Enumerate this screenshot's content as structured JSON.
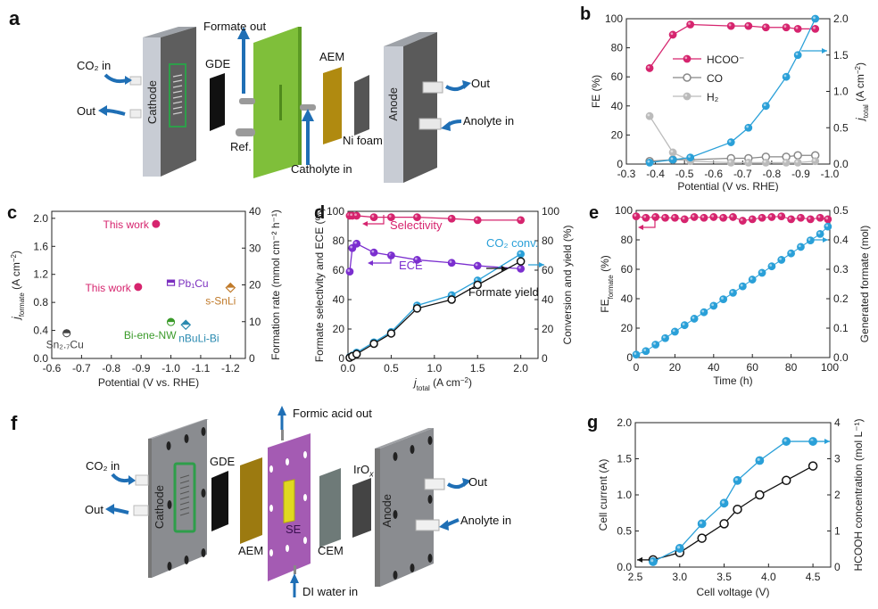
{
  "panels": {
    "a": {
      "label": "a",
      "diagram_labels": {
        "co2_in": "CO₂ in",
        "out_left": "Out",
        "cathode": "Cathode",
        "gde": "GDE",
        "formate_out": "Formate out",
        "ref": "Ref.",
        "catholyte_in": "Catholyte in",
        "aem": "AEM",
        "ni_foam": "Ni foam",
        "anode": "Anode",
        "out_right": "Out",
        "anolyte_in": "Anolyte in"
      },
      "colors": {
        "cathode_plate": "#5e5e5e",
        "cathode_side": "#c8ccd4",
        "gde": "#111111",
        "middle_plate": "#7fbf3a",
        "aem": "#b08a10",
        "ni_foam": "#555555",
        "anode_plate": "#5a5a5a",
        "arrow": "#1f6fb5",
        "flow_field": "#2e9e4a"
      }
    },
    "f": {
      "label": "f",
      "diagram_labels": {
        "co2_in": "CO₂ in",
        "out_left": "Out",
        "cathode": "Cathode",
        "gde": "GDE",
        "aem": "AEM",
        "se": "SE",
        "formic_acid_out": "Formic acid out",
        "di_water_in": "DI water in",
        "cem": "CEM",
        "irox": "IrO",
        "irox_sub": "x",
        "anode": "Anode",
        "out_right": "Out",
        "anolyte_in": "Anolyte in"
      },
      "colors": {
        "cathode_plate": "#8a8c90",
        "gde": "#111111",
        "aem": "#9c7a10",
        "middle_plate": "#a45bb3",
        "se": "#e0d820",
        "cem": "#6e7a78",
        "irox": "#444444",
        "anode_plate": "#8a8c90",
        "arrow": "#1f6fb5",
        "flow_field": "#2e9e4a"
      }
    }
  },
  "chart_data": [
    {
      "id": "b",
      "panel_label": "b",
      "type": "line",
      "xlabel": "Potential (V vs. RHE)",
      "ylabel": "FE (%)",
      "y2label": "j_total (A cm⁻²)",
      "y2label_main": "j",
      "y2label_sub": "total",
      "y2label_unit": " (A cm",
      "y2label_sup": "−2",
      "y2label_close": ")",
      "xlim": [
        -0.3,
        -1.0
      ],
      "ylim": [
        0,
        100
      ],
      "y2lim": [
        0,
        2.0
      ],
      "xticks": [
        "-0.3",
        "-0.4",
        "-0.5",
        "-0.6",
        "-0.7",
        "-0.8",
        "-0.9",
        "-1.0"
      ],
      "yticks": [
        "0",
        "20",
        "40",
        "60",
        "80",
        "100"
      ],
      "y2ticks": [
        "0.0",
        "0.5",
        "1.0",
        "1.5",
        "2.0"
      ],
      "legend_position": "upper-left-center",
      "x": [
        -0.38,
        -0.46,
        -0.52,
        -0.66,
        -0.72,
        -0.78,
        -0.85,
        -0.89,
        -0.95
      ],
      "series": [
        {
          "name": "HCOO⁻",
          "axis": "left",
          "color": "#d6246e",
          "marker": "filled",
          "values": [
            66,
            89,
            96,
            95,
            95,
            94,
            94,
            93,
            93
          ]
        },
        {
          "name": "CO",
          "axis": "left",
          "color": "#888888",
          "marker": "open",
          "values": [
            2,
            3,
            3,
            4,
            4,
            5,
            5,
            6,
            6
          ]
        },
        {
          "name": "H₂",
          "axis": "left",
          "color": "#bbbbbb",
          "marker": "filled",
          "values": [
            33,
            8,
            2,
            1,
            1,
            1,
            1,
            1,
            2
          ]
        },
        {
          "name": "j_total",
          "axis": "right",
          "color": "#2aa0d8",
          "marker": "filled",
          "values": [
            0.02,
            0.06,
            0.09,
            0.3,
            0.5,
            0.8,
            1.2,
            1.5,
            2.0
          ]
        }
      ]
    },
    {
      "id": "c",
      "panel_label": "c",
      "type": "scatter",
      "xlabel": "Potential (V vs. RHE)",
      "ylabel": "j_formate (A cm⁻²)",
      "ylabel_main": "j",
      "ylabel_sub": "formate",
      "ylabel_unit": " (A cm",
      "ylabel_sup": "−2",
      "ylabel_close": ")",
      "y2label": "Formation rate (mmol cm⁻² h⁻¹)",
      "xlim": [
        -0.6,
        -1.25
      ],
      "ylim": [
        0,
        2.1
      ],
      "y2lim": [
        0,
        40
      ],
      "xticks": [
        "-0.6",
        "-0.7",
        "-0.8",
        "-0.9",
        "-1.0",
        "-1.1",
        "-1.2"
      ],
      "yticks": [
        "0.0",
        "0.4",
        "0.8",
        "1.2",
        "1.6",
        "2.0"
      ],
      "y2ticks": [
        "0",
        "10",
        "20",
        "30",
        "40"
      ],
      "points": [
        {
          "name": "This work",
          "x": -0.95,
          "y": 1.92,
          "color": "#d6246e",
          "marker": "circle",
          "label_side": "left"
        },
        {
          "name": "This work",
          "x": -0.89,
          "y": 1.02,
          "color": "#d6246e",
          "marker": "circle",
          "label_side": "left"
        },
        {
          "name": "Pb₁Cu",
          "x": -1.0,
          "y": 1.08,
          "color": "#7b2fbf",
          "marker": "square",
          "label_side": "right"
        },
        {
          "name": "s-SnLi",
          "x": -1.2,
          "y": 1.01,
          "color": "#c07a2a",
          "marker": "diamond",
          "label_side": "below-left"
        },
        {
          "name": "Bi-ene-NW",
          "x": -1.0,
          "y": 0.52,
          "color": "#3a9a2a",
          "marker": "circle",
          "label_side": "below-left"
        },
        {
          "name": "nBuLi-Bi",
          "x": -1.05,
          "y": 0.48,
          "color": "#2a8ab0",
          "marker": "diamond",
          "label_side": "below-right"
        },
        {
          "name": "Sn₂.₇Cu",
          "x": -0.65,
          "y": 0.36,
          "color": "#444444",
          "marker": "circle",
          "label_side": "below"
        }
      ]
    },
    {
      "id": "d",
      "panel_label": "d",
      "type": "line",
      "xlabel": "j_total (A cm⁻²)",
      "xlabel_main": "j",
      "xlabel_sub": "total",
      "xlabel_unit": " (A cm",
      "xlabel_sup": "−2",
      "xlabel_close": ")",
      "ylabel": "Formate selectivity and ECE (%)",
      "y2label": "Conversion and yield (%)",
      "xlim": [
        0,
        2.2
      ],
      "ylim": [
        0,
        100
      ],
      "y2lim": [
        0,
        100
      ],
      "xticks": [
        "0.0",
        "0.5",
        "1.0",
        "1.5",
        "2.0"
      ],
      "yticks": [
        "0",
        "20",
        "40",
        "60",
        "80",
        "100"
      ],
      "y2ticks": [
        "0",
        "20",
        "40",
        "60",
        "80",
        "100"
      ],
      "annotations": [
        "Selectivity",
        "ECE",
        "CO₂ conv.",
        "Formate yield"
      ],
      "series": [
        {
          "name": "Selectivity",
          "axis": "left",
          "color": "#d6246e",
          "marker": "filled",
          "x": [
            0.02,
            0.05,
            0.1,
            0.3,
            0.5,
            0.8,
            1.2,
            1.5,
            2.0
          ],
          "values": [
            97,
            97,
            97,
            96,
            96,
            96,
            95,
            94,
            94
          ]
        },
        {
          "name": "ECE",
          "axis": "left",
          "color": "#7b2fcf",
          "marker": "filled",
          "x": [
            0.02,
            0.05,
            0.1,
            0.3,
            0.5,
            0.8,
            1.2,
            1.5,
            2.0
          ],
          "values": [
            59,
            75,
            78,
            72,
            70,
            67,
            65,
            63,
            61
          ]
        },
        {
          "name": "CO₂ conv.",
          "axis": "right",
          "color": "#2aa0d8",
          "marker": "filled",
          "x": [
            0.02,
            0.05,
            0.1,
            0.3,
            0.5,
            0.8,
            1.2,
            1.5,
            2.0
          ],
          "values": [
            1,
            2,
            4,
            11,
            18,
            36,
            43,
            53,
            71
          ]
        },
        {
          "name": "Formate yield",
          "axis": "right",
          "color": "#111111",
          "marker": "open",
          "x": [
            0.02,
            0.05,
            0.1,
            0.3,
            0.5,
            0.8,
            1.2,
            1.5,
            2.0
          ],
          "values": [
            0.5,
            1.5,
            3,
            10,
            17,
            34,
            40,
            50,
            66
          ]
        }
      ]
    },
    {
      "id": "e",
      "panel_label": "e",
      "type": "line",
      "xlabel": "Time (h)",
      "ylabel": "FE_formate (%)",
      "ylabel_main": "FE",
      "ylabel_sub": "formate",
      "ylabel_close": " (%)",
      "y2label": "Generated formate (mol)",
      "xlim": [
        0,
        100
      ],
      "ylim": [
        0,
        100
      ],
      "y2lim": [
        0,
        0.5
      ],
      "xticks": [
        "0",
        "20",
        "40",
        "60",
        "80",
        "100"
      ],
      "yticks": [
        "0",
        "20",
        "40",
        "60",
        "80",
        "100"
      ],
      "y2ticks": [
        "0.0",
        "0.1",
        "0.2",
        "0.3",
        "0.4",
        "0.5"
      ],
      "x": [
        0,
        5,
        10,
        15,
        20,
        25,
        30,
        35,
        40,
        45,
        50,
        55,
        60,
        65,
        70,
        75,
        80,
        85,
        90,
        95,
        99
      ],
      "series": [
        {
          "name": "FE formate",
          "axis": "left",
          "color": "#d6246e",
          "values": [
            96,
            95,
            95.5,
            95,
            95,
            94,
            95.5,
            95,
            95.5,
            95,
            95.5,
            93,
            94,
            95,
            95.5,
            96,
            94,
            95,
            94,
            95,
            94
          ]
        },
        {
          "name": "Generated formate",
          "axis": "right",
          "color": "#2aa0d8",
          "values": [
            0.01,
            0.022,
            0.044,
            0.066,
            0.088,
            0.11,
            0.132,
            0.154,
            0.176,
            0.198,
            0.22,
            0.242,
            0.265,
            0.288,
            0.31,
            0.332,
            0.354,
            0.376,
            0.398,
            0.42,
            0.445
          ]
        }
      ]
    },
    {
      "id": "g",
      "panel_label": "g",
      "type": "line",
      "xlabel": "Cell voltage (V)",
      "ylabel": "Cell current (A)",
      "y2label": "HCOOH concentration (mol L⁻¹)",
      "xlim": [
        2.5,
        4.7
      ],
      "ylim": [
        0,
        2.0
      ],
      "y2lim": [
        0,
        4
      ],
      "xticks": [
        "2.5",
        "3.0",
        "3.5",
        "4.0",
        "4.5"
      ],
      "yticks": [
        "0.0",
        "0.5",
        "1.0",
        "1.5",
        "2.0"
      ],
      "y2ticks": [
        "0",
        "1",
        "2",
        "3",
        "4"
      ],
      "x": [
        2.7,
        3.0,
        3.25,
        3.5,
        3.65,
        3.9,
        4.2,
        4.5
      ],
      "series": [
        {
          "name": "Cell current",
          "axis": "left",
          "color": "#111111",
          "marker": "open",
          "values": [
            0.1,
            0.2,
            0.4,
            0.6,
            0.8,
            1.0,
            1.2,
            1.4
          ]
        },
        {
          "name": "HCOOH concentration",
          "axis": "right",
          "color": "#2aa0d8",
          "marker": "filled",
          "values": [
            0.15,
            0.52,
            1.2,
            1.77,
            2.4,
            2.95,
            3.48,
            3.48
          ]
        }
      ]
    }
  ]
}
